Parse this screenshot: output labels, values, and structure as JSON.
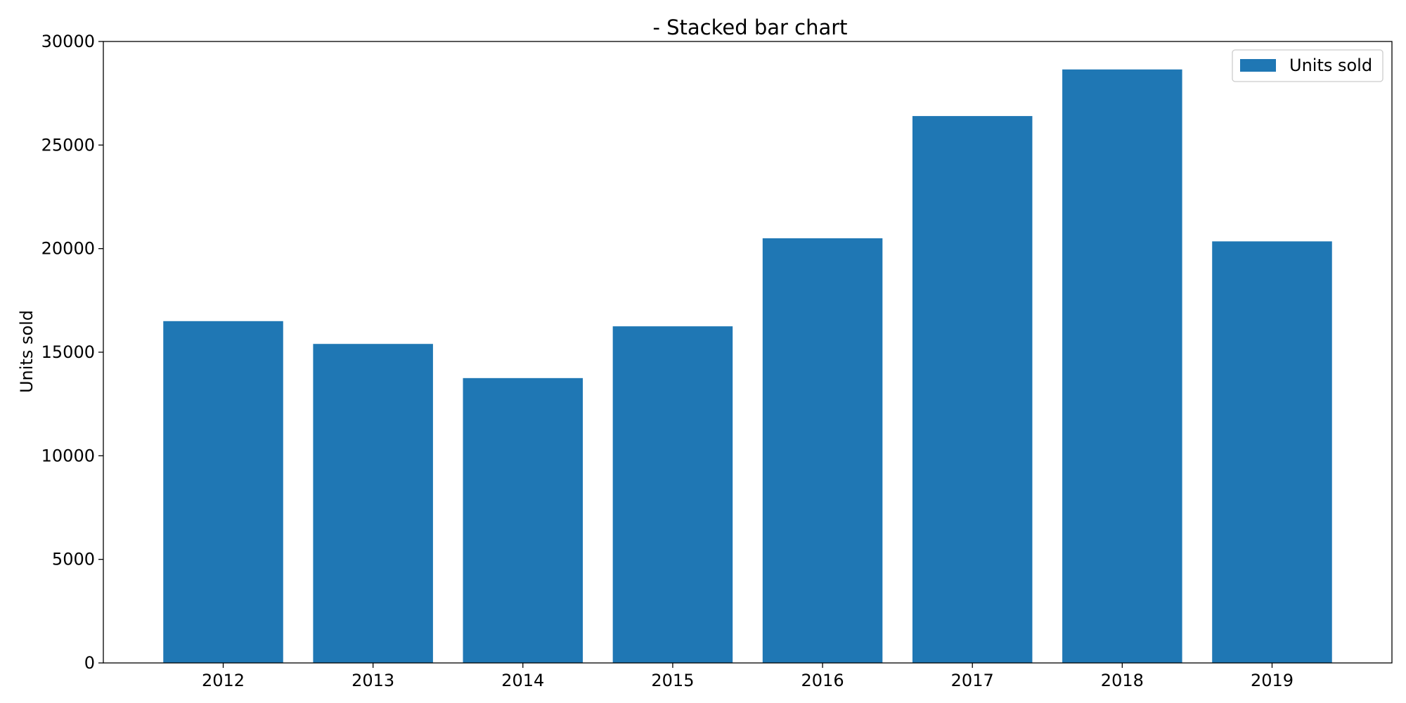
{
  "chart_data": {
    "type": "bar",
    "title": "- Stacked bar chart",
    "xlabel": "",
    "ylabel": "Units sold",
    "categories": [
      "2012",
      "2013",
      "2014",
      "2015",
      "2016",
      "2017",
      "2018",
      "2019"
    ],
    "series": [
      {
        "name": "Units sold",
        "values": [
          16500,
          15400,
          13750,
          16250,
          20500,
          26400,
          28650,
          20350
        ],
        "color": "#1f77b4"
      }
    ],
    "ylim": [
      0,
      30000
    ],
    "yticks": [
      0,
      5000,
      10000,
      15000,
      20000,
      25000,
      30000
    ],
    "grid": false,
    "legend_position": "top-right"
  }
}
